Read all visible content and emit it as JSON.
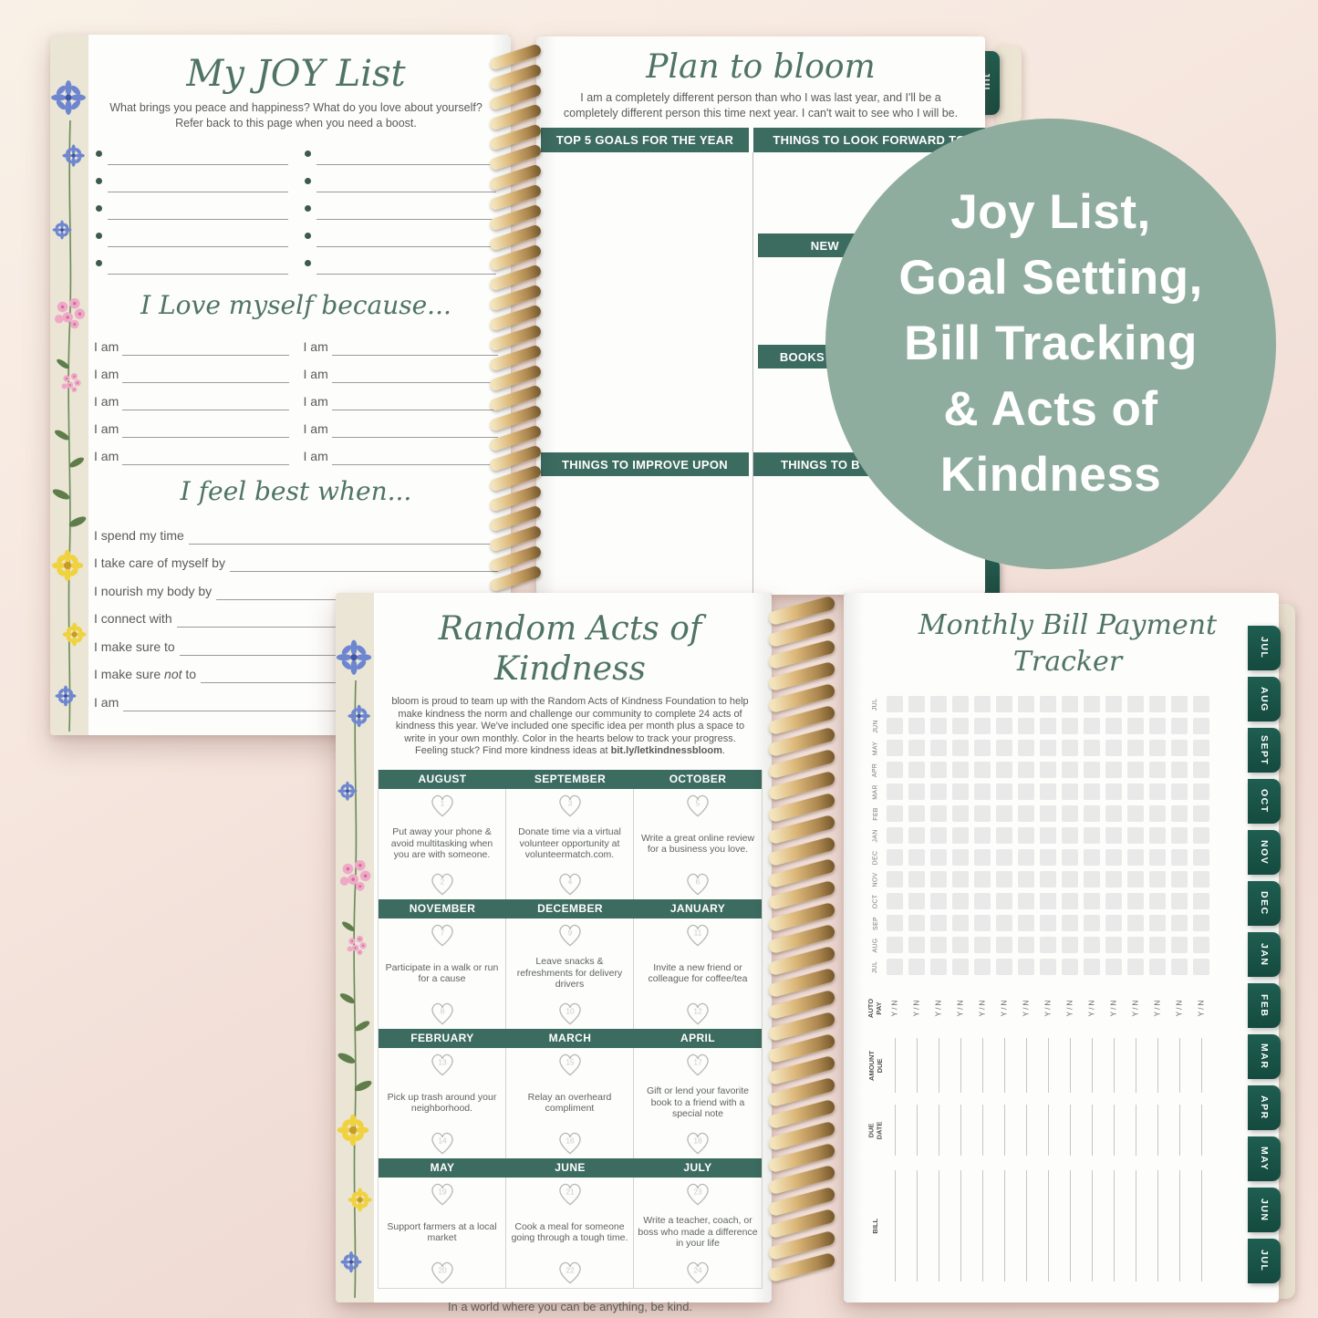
{
  "colors": {
    "accent_bar_green": "#3c6b60",
    "tab_green": "#1a5649",
    "script_green": "#4f7466",
    "badge_green": "#8fad9e",
    "coil_gold": "#cfa86a",
    "grid_square_gray": "#e9e9e9"
  },
  "badge": {
    "lines": [
      "Joy List,",
      "Goal Setting,",
      "Bill Tracking",
      "& Acts of",
      "Kindness"
    ]
  },
  "joy_page": {
    "title": "My JOY List",
    "subtitle1": "What brings you peace and happiness? What do you love about yourself?",
    "subtitle2": "Refer back to this page when you need a boost.",
    "bullet_rows": 5,
    "love_title": "I Love myself because...",
    "iam_label": "I am",
    "iam_rows": 5,
    "feel_title": "I feel best when...",
    "prompts": [
      "I spend my time",
      "I take care of myself by",
      "I nourish my body by",
      "I connect with",
      "I make sure to",
      "I make sure not to",
      "I am"
    ]
  },
  "plan_page": {
    "title": "Plan to bloom",
    "intro1": "I am a completely different person than who I was last year, and I'll be a",
    "intro2": "completely different person this time next year. I can't wait to see who I will be.",
    "bar_top_left": "TOP 5 GOALS FOR THE YEAR",
    "bar_top_right": "THINGS TO LOOK FORWARD TO",
    "bar_new": "NEW",
    "bar_books": "BOOKS",
    "bar_bottom_left": "THINGS TO IMPROVE UPON",
    "bar_bottom_right": "THINGS TO B",
    "corner_tab": "JUL"
  },
  "kindness_page": {
    "title": "Random Acts of Kindness",
    "intro_lines": [
      "bloom is proud to team up with the Random Acts of Kindness Foundation to help",
      "make kindness the norm and challenge our community to complete 24 acts of",
      "kindness this year. We've included one specific idea per month plus a space to",
      "write in your own monthly. Color in the hearts below to track your progress."
    ],
    "intro_tail_prefix": "Feeling stuck? Find more kindness ideas at ",
    "intro_link": "bit.ly/letkindnessbloom",
    "intro_tail_suffix": ".",
    "months": [
      {
        "name": "AUGUST",
        "heart1": "1",
        "text": "Put away your phone & avoid multitasking when you are with someone.",
        "heart2": "2"
      },
      {
        "name": "SEPTEMBER",
        "heart1": "3",
        "text": "Donate time via a virtual volunteer opportunity at volunteermatch.com.",
        "heart2": "4"
      },
      {
        "name": "OCTOBER",
        "heart1": "5",
        "text": "Write a great online review for a business you love.",
        "heart2": "6"
      },
      {
        "name": "NOVEMBER",
        "heart1": "7",
        "text": "Participate in a walk or run for a cause",
        "heart2": "8"
      },
      {
        "name": "DECEMBER",
        "heart1": "9",
        "text": "Leave snacks & refreshments for delivery drivers",
        "heart2": "10"
      },
      {
        "name": "JANUARY",
        "heart1": "11",
        "text": "Invite a new friend or colleague for coffee/tea",
        "heart2": "12"
      },
      {
        "name": "FEBRUARY",
        "heart1": "13",
        "text": "Pick up trash around your neighborhood.",
        "heart2": "14"
      },
      {
        "name": "MARCH",
        "heart1": "15",
        "text": "Relay an overheard compliment",
        "heart2": "16"
      },
      {
        "name": "APRIL",
        "heart1": "17",
        "text": "Gift or lend your favorite book to a friend with a special note",
        "heart2": "18"
      },
      {
        "name": "MAY",
        "heart1": "19",
        "text": "Support farmers at a local market",
        "heart2": "20"
      },
      {
        "name": "JUNE",
        "heart1": "21",
        "text": "Cook a meal for someone going through a tough time.",
        "heart2": "22"
      },
      {
        "name": "JULY",
        "heart1": "23",
        "text": "Write a teacher, coach, or boss who made a difference in your life",
        "heart2": "24"
      }
    ],
    "footer": "In a world where you can be anything, be kind."
  },
  "bill_page": {
    "title": "Monthly Bill Payment Tracker",
    "grid_rows": [
      "JUL",
      "JUN",
      "MAY",
      "APR",
      "MAR",
      "FEB",
      "JAN",
      "DEC",
      "NOV",
      "OCT",
      "SEP",
      "AUG",
      "JUL"
    ],
    "grid_cols": 15,
    "auto_pay_label": "AUTO PAY",
    "auto_pay_value": "Y / N",
    "amount_due_label": "AMOUNT DUE",
    "due_date_label": "DUE DATE",
    "bill_label": "BILL"
  },
  "tabs": [
    "JUL",
    "AUG",
    "SEPT",
    "OCT",
    "NOV",
    "DEC",
    "JAN",
    "FEB",
    "MAR",
    "APR",
    "MAY",
    "JUN",
    "JUL"
  ]
}
